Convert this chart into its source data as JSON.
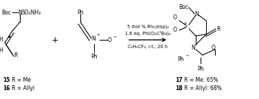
{
  "figsize": [
    3.77,
    1.44
  ],
  "dpi": 100,
  "bg_color": "white",
  "reagent_line1": "5 mol % Rh₂(esp)₂",
  "reagent_line2": "1.6 eq. PhI(O₂CᵗBu)₂",
  "reagent_line3": "C₆H₅CF₃, r.t., 20 h",
  "label15": "15,  R = Me",
  "label16": "16,  R = Allyl",
  "label17": "17,  R = Me: 65%",
  "label18": "18,  R = Allyl: 68%"
}
